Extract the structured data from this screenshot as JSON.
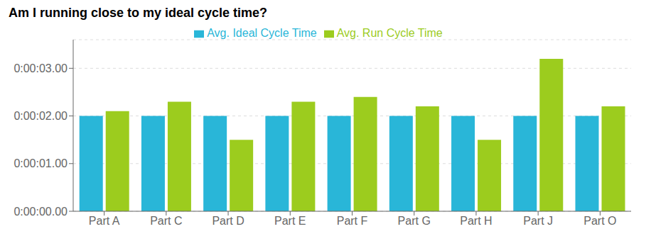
{
  "chart_data": {
    "type": "bar",
    "title": "Am I running close to my ideal cycle time?",
    "categories": [
      "Part A",
      "Part C",
      "Part D",
      "Part E",
      "Part F",
      "Part G",
      "Part H",
      "Part J",
      "Part O"
    ],
    "series": [
      {
        "name": "Avg. Ideal Cycle Time",
        "color": "#29b6d8",
        "values": [
          2.0,
          2.0,
          2.0,
          2.0,
          2.0,
          2.0,
          2.0,
          2.0,
          2.0
        ]
      },
      {
        "name": "Avg. Run Cycle Time",
        "color": "#9ccc1e",
        "values": [
          2.1,
          2.3,
          1.5,
          2.3,
          2.4,
          2.2,
          1.5,
          3.2,
          2.2
        ]
      }
    ],
    "ylim": [
      0,
      3.6
    ],
    "yticks": [
      {
        "value": 0,
        "label": "0:00:00.00"
      },
      {
        "value": 1.0,
        "label": "0:00:01.00"
      },
      {
        "value": 2.0,
        "label": "0:00:02.00"
      },
      {
        "value": 3.0,
        "label": "0:00:03.00"
      }
    ],
    "grid": true,
    "legend": "top"
  }
}
